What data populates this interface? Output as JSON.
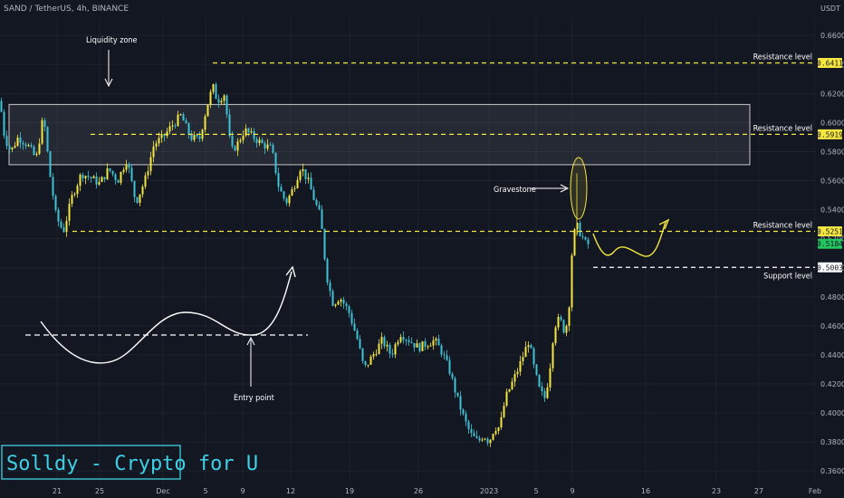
{
  "header": {
    "ticker": "SAND / TetherUS, 4h, BINANCE",
    "currency": "USDT"
  },
  "watermark": "Solldy - Crypto for U",
  "colors": {
    "background": "#131722",
    "bull": "#f5e642",
    "bear": "#3fc1d6",
    "level_line": "#f5e642",
    "support_line": "#ffffff",
    "current_price_badge": "#22c55e"
  },
  "chart_data": {
    "type": "candlestick",
    "timeframe": "4h",
    "ylim": [
      0.352,
      0.672
    ],
    "ylabel": "USDT",
    "y_ticks": [
      "0.6600",
      "0.6400",
      "0.6200",
      "0.6000",
      "0.5800",
      "0.5600",
      "0.5400",
      "0.5200",
      "0.5000",
      "0.4800",
      "0.4600",
      "0.4400",
      "0.4200",
      "0.4000",
      "0.3800",
      "0.3600"
    ],
    "x_ticks": [
      "21",
      "25",
      "Dec",
      "5",
      "9",
      "12",
      "19",
      "26",
      "2023",
      "5",
      "9",
      "16",
      "23",
      "27",
      "Feb"
    ],
    "price_path": [
      [
        0,
        0.615
      ],
      [
        5,
        0.59
      ],
      [
        12,
        0.58
      ],
      [
        20,
        0.59
      ],
      [
        30,
        0.585
      ],
      [
        40,
        0.575
      ],
      [
        48,
        0.605
      ],
      [
        55,
        0.565
      ],
      [
        62,
        0.535
      ],
      [
        70,
        0.525
      ],
      [
        80,
        0.55
      ],
      [
        90,
        0.565
      ],
      [
        100,
        0.562
      ],
      [
        110,
        0.558
      ],
      [
        120,
        0.568
      ],
      [
        130,
        0.56
      ],
      [
        140,
        0.575
      ],
      [
        150,
        0.545
      ],
      [
        160,
        0.56
      ],
      [
        170,
        0.585
      ],
      [
        180,
        0.59
      ],
      [
        190,
        0.598
      ],
      [
        200,
        0.605
      ],
      [
        210,
        0.59
      ],
      [
        220,
        0.588
      ],
      [
        228,
        0.61
      ],
      [
        235,
        0.625
      ],
      [
        240,
        0.615
      ],
      [
        248,
        0.62
      ],
      [
        255,
        0.58
      ],
      [
        262,
        0.585
      ],
      [
        270,
        0.595
      ],
      [
        280,
        0.59
      ],
      [
        290,
        0.585
      ],
      [
        300,
        0.582
      ],
      [
        308,
        0.555
      ],
      [
        316,
        0.545
      ],
      [
        324,
        0.555
      ],
      [
        332,
        0.57
      ],
      [
        340,
        0.56
      ],
      [
        348,
        0.545
      ],
      [
        354,
        0.535
      ],
      [
        358,
        0.51
      ],
      [
        362,
        0.49
      ],
      [
        368,
        0.475
      ],
      [
        375,
        0.48
      ],
      [
        385,
        0.47
      ],
      [
        395,
        0.45
      ],
      [
        402,
        0.43
      ],
      [
        412,
        0.44
      ],
      [
        422,
        0.45
      ],
      [
        432,
        0.44
      ],
      [
        442,
        0.455
      ],
      [
        452,
        0.45
      ],
      [
        462,
        0.445
      ],
      [
        472,
        0.448
      ],
      [
        480,
        0.45
      ],
      [
        488,
        0.442
      ],
      [
        496,
        0.43
      ],
      [
        505,
        0.41
      ],
      [
        513,
        0.395
      ],
      [
        520,
        0.385
      ],
      [
        528,
        0.38
      ],
      [
        534,
        0.385
      ],
      [
        540,
        0.38
      ],
      [
        546,
        0.39
      ],
      [
        552,
        0.39
      ],
      [
        558,
        0.41
      ],
      [
        565,
        0.42
      ],
      [
        572,
        0.43
      ],
      [
        578,
        0.44
      ],
      [
        584,
        0.45
      ],
      [
        590,
        0.43
      ],
      [
        596,
        0.415
      ],
      [
        602,
        0.41
      ],
      [
        607,
        0.43
      ],
      [
        612,
        0.46
      ],
      [
        618,
        0.465
      ],
      [
        624,
        0.455
      ],
      [
        628,
        0.47
      ],
      [
        632,
        0.515
      ],
      [
        636,
        0.53
      ],
      [
        640,
        0.525
      ],
      [
        644,
        0.52
      ],
      [
        648,
        0.515
      ],
      [
        652,
        0.5184
      ]
    ],
    "levels": [
      {
        "label": "Resistance level",
        "price": 0.6411,
        "badge": "0.6411",
        "x_start": 235
      },
      {
        "label": "Resistance level",
        "price": 0.5919,
        "badge": "0.5919",
        "x_start": 100
      },
      {
        "label": "Resistance level",
        "price": 0.5251,
        "badge": "0.5251",
        "x_start": 80
      },
      {
        "label": "Support level",
        "price": 0.5003,
        "badge": "0.5003",
        "x_start": 655
      }
    ],
    "current_price": {
      "value": 0.5184,
      "badge": "0.5184"
    },
    "liquidity_zone": {
      "label": "Liquidity zone",
      "top": 0.6125,
      "bottom": 0.571,
      "x_start": 10,
      "x_end": 828
    },
    "annotations": {
      "gravestone": "Gravestone",
      "entry_point": "Entry point",
      "liquidity": "Liquidity zone"
    }
  }
}
